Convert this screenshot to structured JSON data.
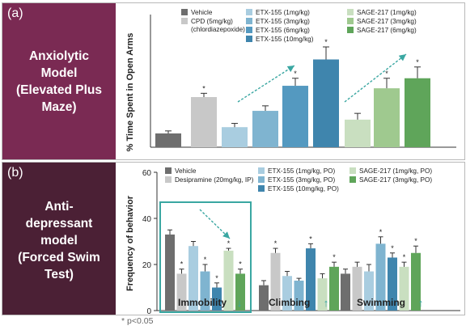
{
  "panel_a": {
    "letter": "(a)",
    "side_title": [
      "Anxiolytic",
      "Model",
      "(Elevated Plus",
      "Maze)"
    ]
  },
  "panel_b": {
    "letter": "(b)",
    "side_title": [
      "Anti-",
      "depressant",
      "model",
      "(Forced Swim",
      "Test)"
    ]
  },
  "footnote": "* p<0.05",
  "colors": {
    "vehicle": "#6e6e6e",
    "cpd": "#c8c8c8",
    "etx1": "#a9cde0",
    "etx3": "#7fb4d0",
    "etx6": "#5499c0",
    "etx10": "#3f85ad",
    "sage1": "#c9dfc0",
    "sage3": "#9fc98f",
    "sage6": "#5fa55a",
    "teal": "#3aa7a2"
  },
  "chart_data": [
    {
      "type": "bar",
      "ylabel": "% Time Spent in Open Arms",
      "legend": [
        {
          "label": "Vehicle",
          "color_key": "vehicle"
        },
        {
          "label": "CPD (5mg/kg)",
          "sub": "(chlordiazepoxide)",
          "color_key": "cpd"
        },
        {
          "label": "ETX-155 (1mg/kg)",
          "color_key": "etx1"
        },
        {
          "label": "ETX-155 (3mg/kg)",
          "color_key": "etx3"
        },
        {
          "label": "ETX-155 (6mg/kg)",
          "color_key": "etx6"
        },
        {
          "label": "ETX-155 (10mg/kg)",
          "color_key": "etx10"
        },
        {
          "label": "SAGE-217 (1mg/kg)",
          "color_key": "sage1"
        },
        {
          "label": "SAGE-217 (3mg/kg)",
          "color_key": "sage3"
        },
        {
          "label": "SAGE-217 (6mg/kg)",
          "color_key": "sage6"
        }
      ],
      "ylim": [
        0,
        90
      ],
      "bars": [
        {
          "group": "Vehicle",
          "value": 11,
          "err": 2,
          "sig": false,
          "color_key": "vehicle"
        },
        {
          "group": "CPD (5mg/kg)",
          "value": 40,
          "err": 3,
          "sig": true,
          "color_key": "cpd"
        },
        {
          "group": "ETX-155 (1mg/kg)",
          "value": 16,
          "err": 3,
          "sig": false,
          "color_key": "etx1"
        },
        {
          "group": "ETX-155 (3mg/kg)",
          "value": 29,
          "err": 4,
          "sig": false,
          "color_key": "etx3"
        },
        {
          "group": "ETX-155 (6mg/kg)",
          "value": 49,
          "err": 6,
          "sig": true,
          "color_key": "etx6"
        },
        {
          "group": "ETX-155 (10mg/kg)",
          "value": 70,
          "err": 10,
          "sig": true,
          "color_key": "etx10"
        },
        {
          "group": "SAGE-217 (1mg/kg)",
          "value": 22,
          "err": 5,
          "sig": false,
          "color_key": "sage1"
        },
        {
          "group": "SAGE-217 (3mg/kg)",
          "value": 47,
          "err": 8,
          "sig": true,
          "color_key": "sage3"
        },
        {
          "group": "SAGE-217 (6mg/kg)",
          "value": 55,
          "err": 9,
          "sig": true,
          "color_key": "sage6"
        }
      ]
    },
    {
      "type": "bar",
      "ylabel": "Frequency of behavior",
      "ylim": [
        0,
        60
      ],
      "yticks": [
        0,
        20,
        40,
        60
      ],
      "legend": [
        {
          "label": "Vehicle",
          "color_key": "vehicle"
        },
        {
          "label": "Desipramine (20mg/kg, IP)",
          "color_key": "cpd"
        },
        {
          "label": "ETX-155 (1mg/kg, PO)",
          "color_key": "etx1"
        },
        {
          "label": "ETX-155 (3mg/kg, PO)",
          "color_key": "etx3"
        },
        {
          "label": "ETX-155 (10mg/kg, PO)",
          "color_key": "etx10"
        },
        {
          "label": "SAGE-217 (1mg/kg, PO)",
          "color_key": "sage1"
        },
        {
          "label": "SAGE-217 (3mg/kg, PO)",
          "color_key": "sage6"
        }
      ],
      "series_color_keys": [
        "vehicle",
        "cpd",
        "etx1",
        "etx3",
        "etx10",
        "sage1",
        "sage6"
      ],
      "categories": [
        "Immobility",
        "Climbing",
        "Swimming"
      ],
      "direction": [
        "↓",
        "↑",
        "↑"
      ],
      "groups": [
        {
          "values": [
            33,
            16,
            28,
            17,
            10,
            26,
            16
          ],
          "errs": [
            2,
            2,
            2,
            3,
            2,
            1,
            2
          ],
          "sig": [
            false,
            true,
            false,
            true,
            true,
            true,
            true
          ]
        },
        {
          "values": [
            11,
            25,
            15,
            13,
            27,
            14,
            19
          ],
          "errs": [
            2,
            2,
            2,
            1,
            2,
            2,
            2
          ],
          "sig": [
            false,
            true,
            false,
            false,
            true,
            false,
            true
          ]
        },
        {
          "values": [
            16,
            19,
            17,
            29,
            23,
            19,
            25
          ],
          "errs": [
            2,
            2,
            3,
            3,
            2,
            2,
            3
          ],
          "sig": [
            false,
            false,
            false,
            true,
            true,
            true,
            true
          ]
        }
      ]
    }
  ]
}
